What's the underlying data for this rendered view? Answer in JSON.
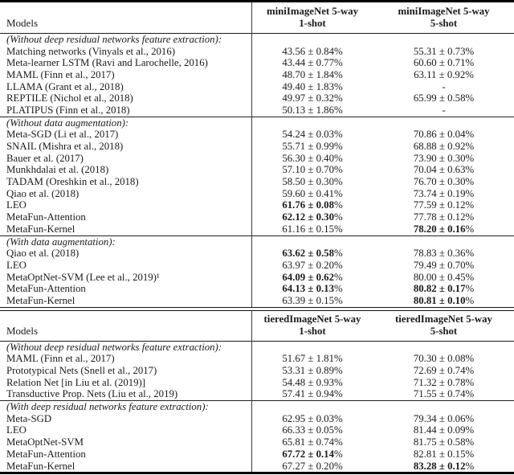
{
  "document": {
    "background": "#ffffff",
    "text_color": "#1a1a1a",
    "rule_color": "#000000",
    "accent_bold_color": "#000000"
  },
  "tables": [
    {
      "name": "miniImageNet results",
      "header": {
        "models_label": "Models",
        "columns": [
          {
            "line1": "miniImageNet 5-way",
            "line2": "1-shot"
          },
          {
            "line1": "miniImageNet 5-way",
            "line2": "5-shot"
          }
        ]
      },
      "sections": [
        {
          "label": "(Without deep residual networks feature extraction):",
          "rows": [
            {
              "model": "Matching networks (Vinyals et al., 2016)",
              "one_shot": "43.56 ± 0.84%",
              "one_shot_bold": false,
              "five_shot": "55.31 ± 0.73%",
              "five_shot_bold": false
            },
            {
              "model": "Meta-learner LSTM (Ravi and Larochelle, 2016)",
              "one_shot": "43.44 ± 0.77%",
              "one_shot_bold": false,
              "five_shot": "60.60 ± 0.71%",
              "five_shot_bold": false
            },
            {
              "model": "MAML (Finn et al., 2017)",
              "one_shot": "48.70 ± 1.84%",
              "one_shot_bold": false,
              "five_shot": "63.11 ± 0.92%",
              "five_shot_bold": false
            },
            {
              "model": "LLAMA (Grant et al., 2018)",
              "one_shot": "49.40 ± 1.83%",
              "one_shot_bold": false,
              "five_shot": "-",
              "five_shot_bold": false
            },
            {
              "model": "REPTILE (Nichol et al., 2018)",
              "one_shot": "49.97 ± 0.32%",
              "one_shot_bold": false,
              "five_shot": "65.99 ± 0.58%",
              "five_shot_bold": false
            },
            {
              "model": "PLATIPUS (Finn et al., 2018)",
              "one_shot": "50.13 ± 1.86%",
              "one_shot_bold": false,
              "five_shot": "-",
              "five_shot_bold": false
            }
          ]
        },
        {
          "label": "(Without data augmentation):",
          "rows": [
            {
              "model": "Meta-SGD (Li et al., 2017)",
              "one_shot": "54.24 ± 0.03%",
              "one_shot_bold": false,
              "five_shot": "70.86 ± 0.04%",
              "five_shot_bold": false
            },
            {
              "model": "SNAIL (Mishra et al., 2018)",
              "one_shot": "55.71 ± 0.99%",
              "one_shot_bold": false,
              "five_shot": "68.88 ± 0.92%",
              "five_shot_bold": false
            },
            {
              "model": "Bauer et al. (2017)",
              "one_shot": "56.30 ± 0.40%",
              "one_shot_bold": false,
              "five_shot": "73.90 ± 0.30%",
              "five_shot_bold": false
            },
            {
              "model": "Munkhdalai et al. (2018)",
              "one_shot": "57.10 ± 0.70%",
              "one_shot_bold": false,
              "five_shot": "70.04 ± 0.63%",
              "five_shot_bold": false
            },
            {
              "model": "TADAM (Oreshkin et al., 2018)",
              "one_shot": "58.50 ± 0.30%",
              "one_shot_bold": false,
              "five_shot": "76.70 ± 0.30%",
              "five_shot_bold": false
            },
            {
              "model": "Qiao et al. (2018)",
              "one_shot": "59.60 ± 0.41%",
              "one_shot_bold": false,
              "five_shot": "73.74 ± 0.19%",
              "five_shot_bold": false
            },
            {
              "model": "LEO",
              "one_shot": "61.76 ± 0.08%",
              "one_shot_bold": true,
              "five_shot": "77.59 ± 0.12%",
              "five_shot_bold": false
            },
            {
              "model": "MetaFun-Attention",
              "one_shot": "62.12 ± 0.30%",
              "one_shot_bold": true,
              "five_shot": "77.78 ± 0.12%",
              "five_shot_bold": false
            },
            {
              "model": "MetaFun-Kernel",
              "one_shot": "61.16 ± 0.15%",
              "one_shot_bold": false,
              "five_shot": "78.20 ± 0.16%",
              "five_shot_bold": true
            }
          ]
        },
        {
          "label": "(With data augmentation):",
          "rows": [
            {
              "model": "Qiao et al. (2018)",
              "one_shot": "63.62 ± 0.58%",
              "one_shot_bold": true,
              "five_shot": "78.83 ± 0.36%",
              "five_shot_bold": false
            },
            {
              "model": "LEO",
              "one_shot": "63.97 ± 0.20%",
              "one_shot_bold": false,
              "five_shot": "79.49 ± 0.70%",
              "five_shot_bold": false
            },
            {
              "model": "MetaOptNet-SVM (Lee et al., 2019)¹",
              "one_shot": "64.09 ± 0.62%",
              "one_shot_bold": true,
              "five_shot": "80.00 ± 0.45%",
              "five_shot_bold": false
            },
            {
              "model": "MetaFun-Attention",
              "one_shot": "64.13 ± 0.13%",
              "one_shot_bold": true,
              "five_shot": "80.82 ± 0.17%",
              "five_shot_bold": true
            },
            {
              "model": "MetaFun-Kernel",
              "one_shot": "63.39 ± 0.15%",
              "one_shot_bold": false,
              "five_shot": "80.81 ± 0.10%",
              "five_shot_bold": true
            }
          ]
        }
      ]
    },
    {
      "name": "tieredImageNet results",
      "header": {
        "models_label": "Models",
        "columns": [
          {
            "line1": "tieredImageNet 5-way",
            "line2": "1-shot"
          },
          {
            "line1": "tieredImageNet 5-way",
            "line2": "5-shot"
          }
        ]
      },
      "sections": [
        {
          "label": "(Without deep residual networks feature extraction):",
          "rows": [
            {
              "model": "MAML (Finn et al., 2017)",
              "one_shot": "51.67 ± 1.81%",
              "one_shot_bold": false,
              "five_shot": "70.30 ± 0.08%",
              "five_shot_bold": false
            },
            {
              "model": "Prototypical Nets (Snell et al., 2017)",
              "one_shot": "53.31 ± 0.89%",
              "one_shot_bold": false,
              "five_shot": "72.69 ± 0.74%",
              "five_shot_bold": false
            },
            {
              "model": "Relation Net [in Liu et al. (2019)]",
              "one_shot": "54.48 ± 0.93%",
              "one_shot_bold": false,
              "five_shot": "71.32 ± 0.78%",
              "five_shot_bold": false
            },
            {
              "model": "Transductive Prop. Nets (Liu et al., 2019)",
              "one_shot": "57.41 ± 0.94%",
              "one_shot_bold": false,
              "five_shot": "71.55 ± 0.74%",
              "five_shot_bold": false
            }
          ]
        },
        {
          "label": "(With deep residual networks feature extraction):",
          "rows": [
            {
              "model": "Meta-SGD",
              "one_shot": "62.95 ± 0.03%",
              "one_shot_bold": false,
              "five_shot": "79.34 ± 0.06%",
              "five_shot_bold": false
            },
            {
              "model": "LEO",
              "one_shot": "66.33 ± 0.05%",
              "one_shot_bold": false,
              "five_shot": "81.44 ± 0.09%",
              "five_shot_bold": false
            },
            {
              "model": "MetaOptNet-SVM",
              "one_shot": "65.81 ± 0.74%",
              "one_shot_bold": false,
              "five_shot": "81.75 ± 0.58%",
              "five_shot_bold": false
            },
            {
              "model": "MetaFun-Attention",
              "one_shot": "67.72 ± 0.14%",
              "one_shot_bold": true,
              "five_shot": "82.81 ± 0.15%",
              "five_shot_bold": false
            },
            {
              "model": "MetaFun-Kernel",
              "one_shot": "67.27 ± 0.20%",
              "one_shot_bold": false,
              "five_shot": "83.28 ± 0.12%",
              "five_shot_bold": true
            }
          ]
        }
      ]
    }
  ]
}
